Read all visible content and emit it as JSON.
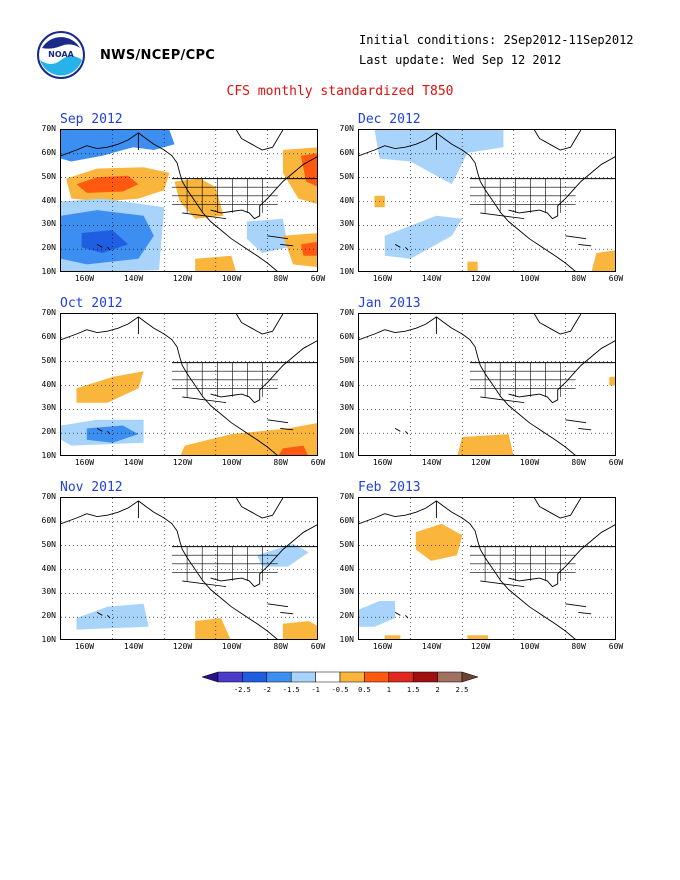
{
  "header": {
    "org": "NWS/NCEP/CPC",
    "initial_conditions": "Initial conditions: 2Sep2012-11Sep2012",
    "last_update": "Last update: Wed Sep 12 2012",
    "title": "CFS monthly standardized T850",
    "logo_text": "NOAA"
  },
  "axes": {
    "lat_labels": [
      "70N",
      "60N",
      "50N",
      "40N",
      "30N",
      "20N",
      "10N"
    ],
    "lon_labels": [
      "160W",
      "140W",
      "120W",
      "100W",
      "80W",
      "60W"
    ]
  },
  "panels": [
    {
      "title": "Sep 2012",
      "anomalies": [
        {
          "cat": "-1",
          "pts": [
            [
              0.0,
              0.0
            ],
            [
              0.42,
              0.0
            ],
            [
              0.44,
              0.1
            ],
            [
              0.36,
              0.14
            ],
            [
              0.28,
              0.12
            ],
            [
              0.16,
              0.18
            ],
            [
              0.04,
              0.22
            ],
            [
              0.0,
              0.2
            ]
          ]
        },
        {
          "cat": "0.5",
          "pts": [
            [
              0.02,
              0.34
            ],
            [
              0.14,
              0.27
            ],
            [
              0.32,
              0.26
            ],
            [
              0.42,
              0.3
            ],
            [
              0.4,
              0.42
            ],
            [
              0.3,
              0.48
            ],
            [
              0.16,
              0.5
            ],
            [
              0.04,
              0.48
            ]
          ]
        },
        {
          "cat": "1",
          "pts": [
            [
              0.06,
              0.38
            ],
            [
              0.14,
              0.33
            ],
            [
              0.26,
              0.32
            ],
            [
              0.3,
              0.38
            ],
            [
              0.24,
              0.43
            ],
            [
              0.1,
              0.44
            ]
          ]
        },
        {
          "cat": "0.5",
          "pts": [
            [
              0.44,
              0.36
            ],
            [
              0.54,
              0.34
            ],
            [
              0.6,
              0.4
            ],
            [
              0.63,
              0.6
            ],
            [
              0.52,
              0.62
            ],
            [
              0.46,
              0.5
            ]
          ]
        },
        {
          "cat": "0.5",
          "pts": [
            [
              0.86,
              0.14
            ],
            [
              1.0,
              0.12
            ],
            [
              1.0,
              0.52
            ],
            [
              0.92,
              0.48
            ],
            [
              0.86,
              0.3
            ]
          ]
        },
        {
          "cat": "1",
          "pts": [
            [
              0.93,
              0.18
            ],
            [
              1.0,
              0.16
            ],
            [
              1.0,
              0.4
            ],
            [
              0.95,
              0.36
            ]
          ]
        },
        {
          "cat": "-0.5",
          "pts": [
            [
              0.0,
              0.5
            ],
            [
              0.16,
              0.48
            ],
            [
              0.4,
              0.54
            ],
            [
              0.38,
              0.98
            ],
            [
              0.0,
              1.0
            ]
          ]
        },
        {
          "cat": "-1",
          "pts": [
            [
              0.0,
              0.6
            ],
            [
              0.14,
              0.56
            ],
            [
              0.32,
              0.6
            ],
            [
              0.36,
              0.74
            ],
            [
              0.3,
              0.9
            ],
            [
              0.1,
              0.94
            ],
            [
              0.0,
              0.9
            ]
          ]
        },
        {
          "cat": "-1.5",
          "pts": [
            [
              0.08,
              0.72
            ],
            [
              0.2,
              0.7
            ],
            [
              0.26,
              0.8
            ],
            [
              0.16,
              0.86
            ],
            [
              0.08,
              0.82
            ]
          ]
        },
        {
          "cat": "-0.5",
          "pts": [
            [
              0.72,
              0.64
            ],
            [
              0.86,
              0.62
            ],
            [
              0.88,
              0.82
            ],
            [
              0.78,
              0.86
            ],
            [
              0.72,
              0.76
            ]
          ]
        },
        {
          "cat": "0.5",
          "pts": [
            [
              0.86,
              0.74
            ],
            [
              1.0,
              0.72
            ],
            [
              1.0,
              0.96
            ],
            [
              0.9,
              0.94
            ]
          ]
        },
        {
          "cat": "1",
          "pts": [
            [
              0.93,
              0.8
            ],
            [
              1.0,
              0.78
            ],
            [
              1.0,
              0.88
            ],
            [
              0.94,
              0.88
            ]
          ]
        },
        {
          "cat": "0.5",
          "pts": [
            [
              0.52,
              0.9
            ],
            [
              0.66,
              0.88
            ],
            [
              0.68,
              1.0
            ],
            [
              0.52,
              1.0
            ]
          ]
        }
      ]
    },
    {
      "title": "Dec 2012",
      "anomalies": [
        {
          "cat": "-0.5",
          "pts": [
            [
              0.06,
              0.0
            ],
            [
              0.56,
              0.0
            ],
            [
              0.56,
              0.12
            ],
            [
              0.42,
              0.16
            ],
            [
              0.36,
              0.38
            ],
            [
              0.28,
              0.3
            ],
            [
              0.2,
              0.22
            ],
            [
              0.08,
              0.2
            ]
          ]
        },
        {
          "cat": "-0.5",
          "pts": [
            [
              0.1,
              0.74
            ],
            [
              0.3,
              0.6
            ],
            [
              0.4,
              0.62
            ],
            [
              0.36,
              0.74
            ],
            [
              0.2,
              0.9
            ],
            [
              0.1,
              0.88
            ]
          ]
        },
        {
          "cat": "0.5",
          "pts": [
            [
              0.06,
              0.46
            ],
            [
              0.1,
              0.46
            ],
            [
              0.1,
              0.54
            ],
            [
              0.06,
              0.54
            ]
          ]
        },
        {
          "cat": "0.5",
          "pts": [
            [
              0.92,
              0.86
            ],
            [
              1.0,
              0.84
            ],
            [
              1.0,
              1.0
            ],
            [
              0.9,
              1.0
            ]
          ]
        },
        {
          "cat": "0.5",
          "pts": [
            [
              0.42,
              0.92
            ],
            [
              0.46,
              0.92
            ],
            [
              0.46,
              1.0
            ],
            [
              0.42,
              1.0
            ]
          ]
        }
      ]
    },
    {
      "title": "Oct 2012",
      "anomalies": [
        {
          "cat": "0.5",
          "pts": [
            [
              0.06,
              0.52
            ],
            [
              0.2,
              0.44
            ],
            [
              0.32,
              0.4
            ],
            [
              0.3,
              0.52
            ],
            [
              0.18,
              0.62
            ],
            [
              0.06,
              0.62
            ]
          ]
        },
        {
          "cat": "-0.5",
          "pts": [
            [
              0.0,
              0.78
            ],
            [
              0.14,
              0.74
            ],
            [
              0.32,
              0.74
            ],
            [
              0.32,
              0.9
            ],
            [
              0.04,
              0.92
            ],
            [
              0.0,
              0.88
            ]
          ]
        },
        {
          "cat": "-1",
          "pts": [
            [
              0.1,
              0.8
            ],
            [
              0.24,
              0.78
            ],
            [
              0.3,
              0.84
            ],
            [
              0.2,
              0.9
            ],
            [
              0.1,
              0.88
            ]
          ]
        },
        {
          "cat": "0.5",
          "pts": [
            [
              0.48,
              0.92
            ],
            [
              0.66,
              0.84
            ],
            [
              0.88,
              0.8
            ],
            [
              1.0,
              0.76
            ],
            [
              1.0,
              1.0
            ],
            [
              0.46,
              1.0
            ]
          ]
        },
        {
          "cat": "1",
          "pts": [
            [
              0.86,
              0.94
            ],
            [
              0.94,
              0.92
            ],
            [
              0.96,
              1.0
            ],
            [
              0.84,
              1.0
            ]
          ]
        }
      ]
    },
    {
      "title": "Jan 2013",
      "anomalies": [
        {
          "cat": "0.5",
          "pts": [
            [
              0.4,
              0.86
            ],
            [
              0.58,
              0.84
            ],
            [
              0.6,
              1.0
            ],
            [
              0.38,
              1.0
            ]
          ]
        },
        {
          "cat": "0.5",
          "pts": [
            [
              0.97,
              0.44
            ],
            [
              1.0,
              0.44
            ],
            [
              1.0,
              0.5
            ],
            [
              0.97,
              0.5
            ]
          ]
        }
      ]
    },
    {
      "title": "Nov 2012",
      "anomalies": [
        {
          "cat": "-0.5",
          "pts": [
            [
              0.76,
              0.4
            ],
            [
              0.9,
              0.32
            ],
            [
              0.96,
              0.38
            ],
            [
              0.88,
              0.48
            ],
            [
              0.78,
              0.48
            ]
          ]
        },
        {
          "cat": "-0.5",
          "pts": [
            [
              0.06,
              0.84
            ],
            [
              0.18,
              0.76
            ],
            [
              0.32,
              0.74
            ],
            [
              0.34,
              0.9
            ],
            [
              0.06,
              0.92
            ]
          ]
        },
        {
          "cat": "0.5",
          "pts": [
            [
              0.52,
              0.86
            ],
            [
              0.62,
              0.84
            ],
            [
              0.66,
              1.0
            ],
            [
              0.52,
              1.0
            ]
          ]
        },
        {
          "cat": "0.5",
          "pts": [
            [
              0.86,
              0.88
            ],
            [
              0.96,
              0.86
            ],
            [
              1.0,
              0.9
            ],
            [
              1.0,
              1.0
            ],
            [
              0.86,
              1.0
            ]
          ]
        }
      ]
    },
    {
      "title": "Feb 2013",
      "anomalies": [
        {
          "cat": "0.5",
          "pts": [
            [
              0.22,
              0.24
            ],
            [
              0.32,
              0.18
            ],
            [
              0.4,
              0.26
            ],
            [
              0.38,
              0.4
            ],
            [
              0.28,
              0.44
            ],
            [
              0.22,
              0.36
            ]
          ]
        },
        {
          "cat": "-0.5",
          "pts": [
            [
              0.0,
              0.78
            ],
            [
              0.08,
              0.72
            ],
            [
              0.14,
              0.72
            ],
            [
              0.14,
              0.84
            ],
            [
              0.06,
              0.9
            ],
            [
              0.0,
              0.9
            ]
          ]
        },
        {
          "cat": "0.5",
          "pts": [
            [
              0.1,
              0.96
            ],
            [
              0.16,
              0.96
            ],
            [
              0.16,
              1.0
            ],
            [
              0.1,
              1.0
            ]
          ]
        },
        {
          "cat": "0.5",
          "pts": [
            [
              0.42,
              0.96
            ],
            [
              0.5,
              0.96
            ],
            [
              0.5,
              1.0
            ],
            [
              0.42,
              1.0
            ]
          ]
        }
      ]
    }
  ],
  "colorbar": {
    "labels": [
      "-2.5",
      "-2",
      "-1.5",
      "-1",
      "-0.5",
      "0.5",
      "1",
      "1.5",
      "2",
      "2.5"
    ],
    "colors": [
      "#2a0f8f",
      "#4a3cc8",
      "#1f5ee0",
      "#3c8ff0",
      "#a8d4fb",
      "#ffffff",
      "#f9b53c",
      "#ff5a10",
      "#e0281c",
      "#a01010",
      "#a07060",
      "#6e4232"
    ],
    "category_colors": {
      "-2.5": "#2a0f8f",
      "-2": "#4a3cc8",
      "-1.5": "#1f5ee0",
      "-1": "#3c8ff0",
      "-0.5": "#a8d4fb",
      "0.5": "#f9b53c",
      "1": "#ff5a10",
      "1.5": "#e0281c",
      "2": "#a01010",
      "2.5": "#a07060"
    }
  }
}
